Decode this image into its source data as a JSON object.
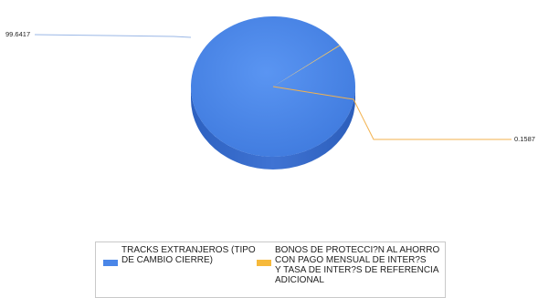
{
  "chart_data": {
    "type": "pie",
    "slices": [
      {
        "label": "TRACKS EXTRANJEROS (TIPO\nDE CAMBIO CIERRE)",
        "value": 99.6417,
        "value_label": "99.6417",
        "color": "#4a86e8"
      },
      {
        "label": "BONOS DE PROTECCI?N AL AHORRO\nCON PAGO MENSUAL DE INTER?S\nY TASA DE INTER?S DE REFERENCIA\nADICIONAL",
        "value": 0.1587,
        "value_label": "0.1587",
        "color": "#f6b93b"
      }
    ],
    "legend_placement": "bottom",
    "style": "3d"
  }
}
